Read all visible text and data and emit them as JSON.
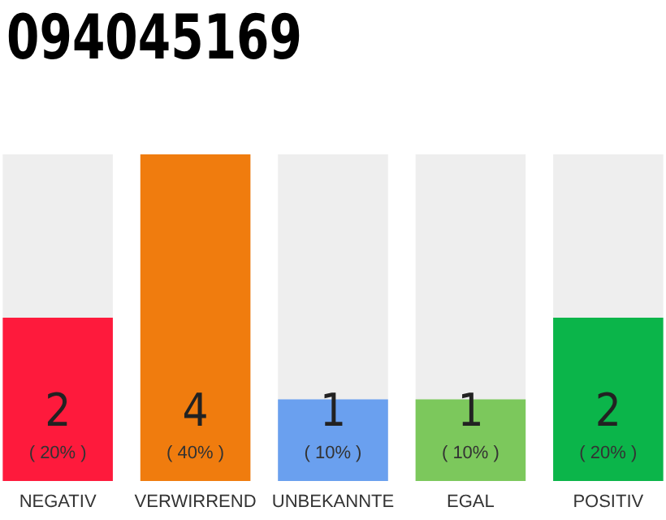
{
  "chart_data": {
    "type": "bar",
    "title": "094045169",
    "categories": [
      "NEGATIV",
      "VERWIRREND",
      "UNBEKANNTE",
      "EGAL",
      "POSITIV"
    ],
    "values": [
      2,
      4,
      1,
      1,
      2
    ],
    "colors": [
      "#fe1a3c",
      "#f07c0e",
      "#6aa0ef",
      "#7cc85c",
      "#0bb54a"
    ],
    "value_labels": [
      "2\n( 20% )",
      "4\n( 40% )",
      "1\n( 10% )",
      "1\n( 10% )",
      "2\n( 20% )"
    ],
    "ylim": [
      0,
      4
    ],
    "tick_labels": "x"
  }
}
